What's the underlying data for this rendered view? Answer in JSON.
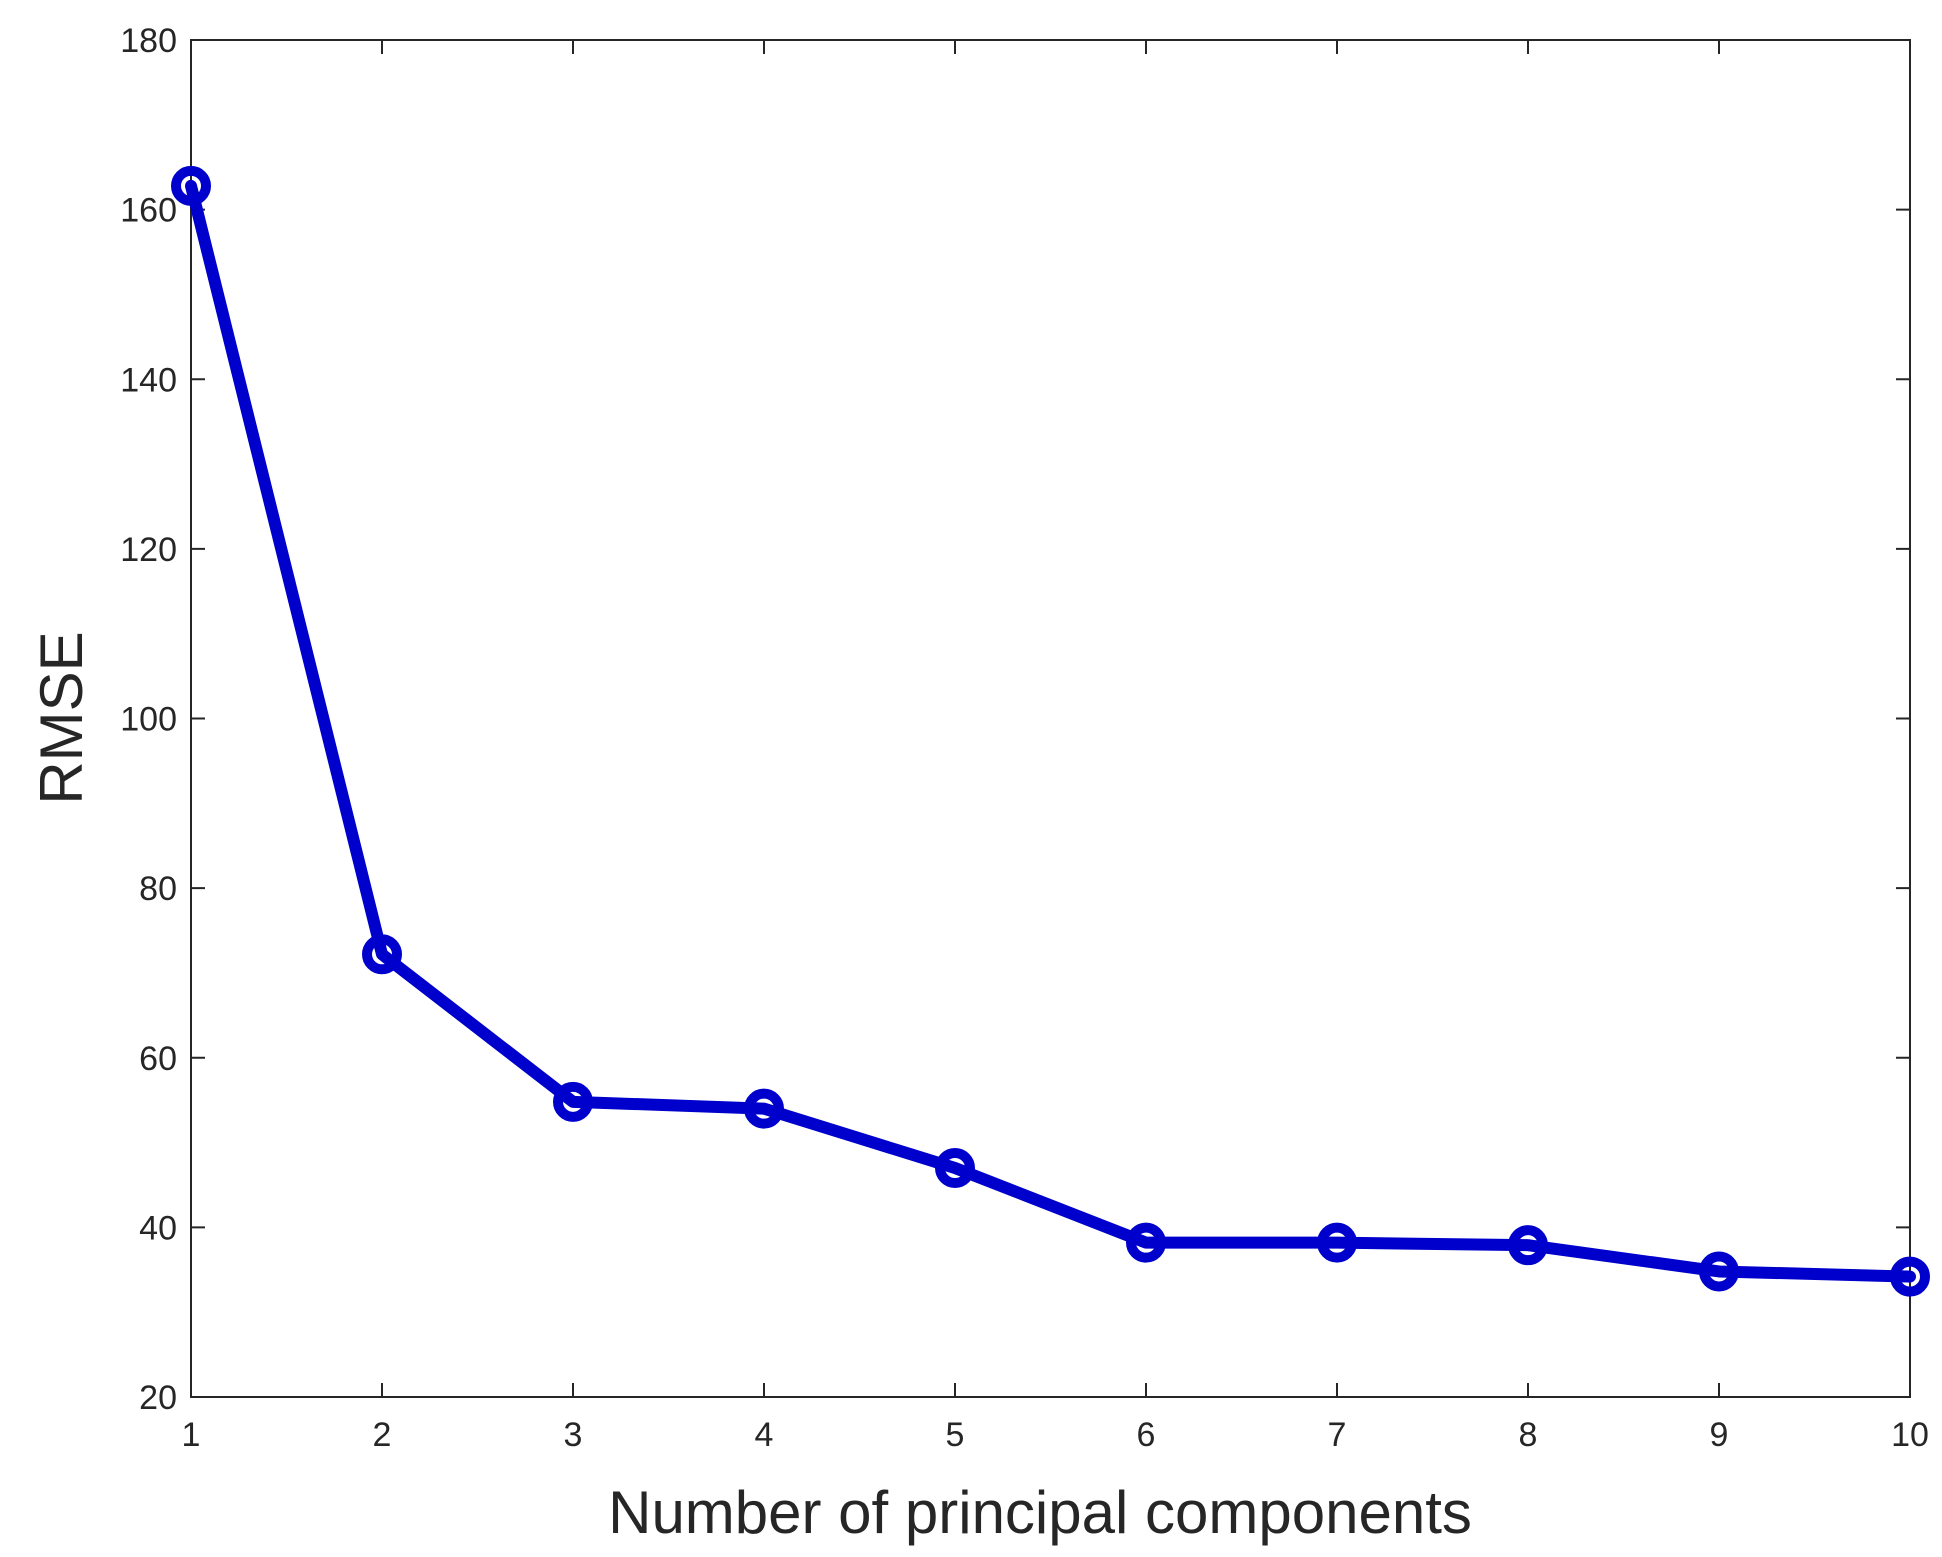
{
  "chart_data": {
    "type": "line",
    "title": "",
    "xlabel": "Number of principal components",
    "ylabel": "RMSE",
    "xlim": [
      1,
      10
    ],
    "ylim": [
      20,
      180
    ],
    "x_ticks": [
      1,
      2,
      3,
      4,
      5,
      6,
      7,
      8,
      9,
      10
    ],
    "y_ticks": [
      20,
      40,
      60,
      80,
      100,
      120,
      140,
      160,
      180
    ],
    "grid": false,
    "legend": "none",
    "marker": "circle",
    "series": [
      {
        "color": "#0000cc",
        "x": [
          1,
          2,
          3,
          4,
          5,
          6,
          7,
          8,
          9,
          10
        ],
        "y": [
          162.8,
          72.2,
          54.8,
          54.0,
          47.0,
          38.2,
          38.2,
          37.9,
          34.8,
          34.2
        ]
      }
    ]
  }
}
